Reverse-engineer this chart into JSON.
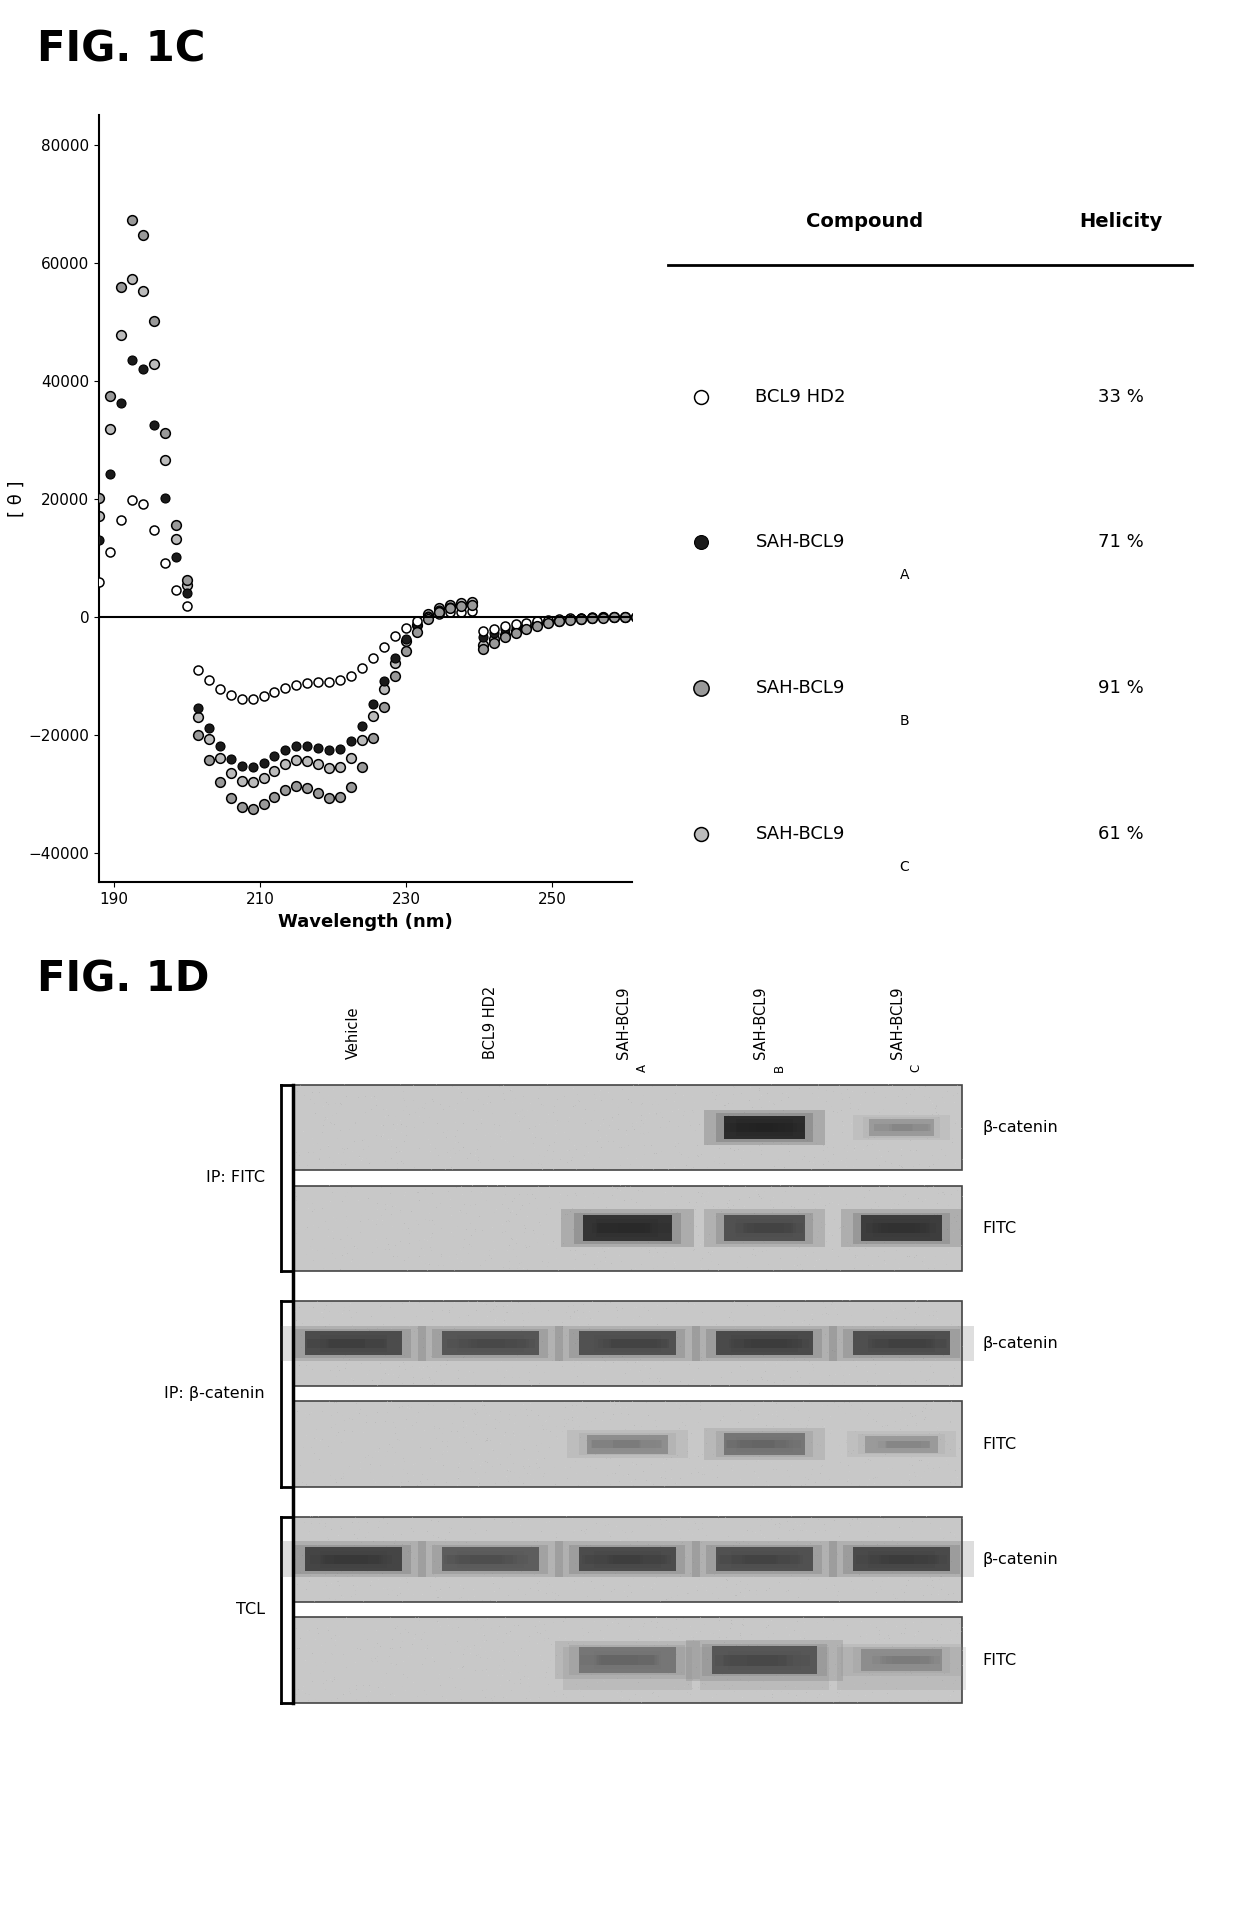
{
  "fig_label_C": "FIG. 1C",
  "fig_label_D": "FIG. 1D",
  "xlabel": "Wavelength (nm)",
  "ylabel": "[ θ ]",
  "xlim": [
    188,
    261
  ],
  "ylim": [
    -45000,
    85000
  ],
  "yticks": [
    -40000,
    -20000,
    0,
    20000,
    40000,
    60000,
    80000
  ],
  "xticks": [
    190,
    210,
    230,
    250
  ],
  "table_header_compound": "Compound",
  "table_header_helicity": "Helicity",
  "compounds": [
    "BCL9 HD2",
    "SAH-BCL9",
    "SAH-BCL9",
    "SAH-BCL9"
  ],
  "compound_subs": [
    "",
    "A",
    "B",
    "C"
  ],
  "helicities": [
    "33 %",
    "71 %",
    "91 %",
    "61 %"
  ],
  "blot_row_labels": [
    "β-catenin",
    "FITC",
    "β-catenin",
    "FITC",
    "β-catenin",
    "FITC"
  ],
  "blot_group_labels": [
    "IP: FITC",
    "IP: β-catenin",
    "TCL"
  ],
  "blot_col_labels": [
    "Vehicle",
    "BCL9 HD2",
    "SAH-BCL9",
    "SAH-BCL9",
    "SAH-BCL9"
  ],
  "blot_col_subs": [
    "",
    "",
    "A",
    "B",
    "C"
  ],
  "bg_color": "#ffffff"
}
